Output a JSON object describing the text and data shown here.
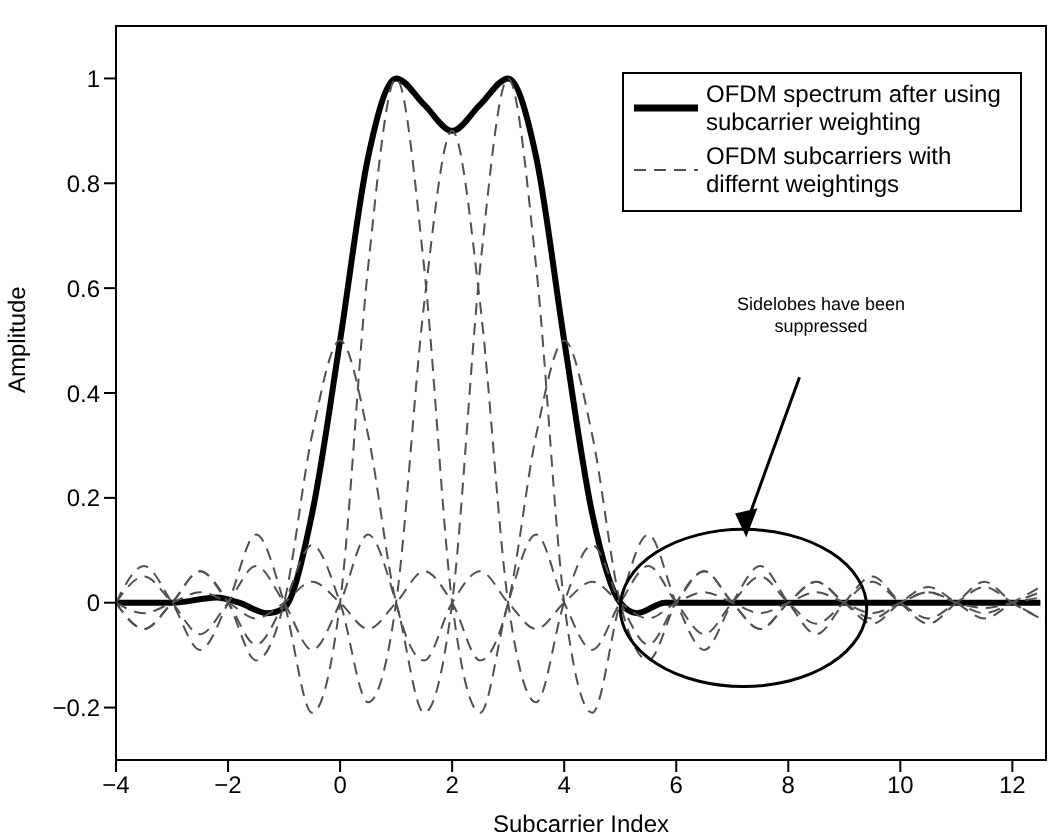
{
  "chart_data": {
    "type": "line",
    "xlabel": "Subcarrier Index",
    "ylabel": "Amplitude",
    "xlim": [
      -4,
      12.6
    ],
    "xticks": [
      -4,
      -2,
      0,
      2,
      4,
      6,
      8,
      10,
      12
    ],
    "ylim": [
      -0.3,
      1.1
    ],
    "yticks": [
      -0.2,
      0,
      0.2,
      0.4,
      0.6,
      0.8,
      1
    ],
    "grid": false,
    "legend": "top right",
    "marker": "none",
    "annotations": [
      "Sidelobes have been suppressed"
    ],
    "series": [
      {
        "name": "OFDM spectrum after using subcarrier weighting",
        "color": "#000000",
        "line_style": "solid",
        "x": [
          -4,
          -3,
          -2.2,
          -1.8,
          -1.3,
          -1,
          -0.5,
          0,
          0.5,
          1,
          1.5,
          2,
          2.5,
          3,
          3.5,
          4,
          4.5,
          5,
          5.3,
          5.8,
          6.5,
          8,
          10,
          12.5
        ],
        "values": [
          0,
          0,
          0.01,
          0,
          -0.02,
          -0.01,
          0.17,
          0.5,
          0.85,
          1,
          0.95,
          0.9,
          0.95,
          1,
          0.85,
          0.5,
          0.17,
          0,
          -0.02,
          0,
          0,
          0,
          0,
          0
        ]
      },
      {
        "name": "OFDM subcarriers with differnt weightings",
        "color": "#505050",
        "line_style": "dashed",
        "x": [
          -4,
          -3.5,
          -3,
          -2.5,
          -2,
          -1.5,
          -1,
          -0.5,
          0,
          0.5,
          1,
          1.5,
          2,
          2.5,
          3,
          3.5,
          4,
          4.5,
          5,
          5.5,
          6,
          6.5,
          7,
          7.5,
          8,
          8.5,
          9,
          9.5,
          10,
          10.5,
          11,
          11.5,
          12,
          12.5
        ],
        "values": [
          0,
          -0.05,
          0,
          0.06,
          0,
          -0.11,
          0,
          0.32,
          0.5,
          0.32,
          0,
          -0.11,
          0,
          0.06,
          0,
          -0.05,
          0,
          0.04,
          0,
          -0.03,
          0,
          0.02,
          0,
          -0.02,
          0,
          0.02,
          0,
          -0.02,
          0,
          0.02,
          0,
          -0.01,
          0,
          0.01
        ]
      },
      {
        "color": "#505050",
        "line_style": "dashed",
        "x": [
          -4,
          -3.5,
          -3,
          -2.5,
          -2,
          -1.5,
          -1,
          -0.5,
          0,
          0.5,
          1,
          1.5,
          2,
          2.5,
          3,
          3.5,
          4,
          4.5,
          5,
          5.5,
          6,
          6.5,
          7,
          7.5,
          8,
          8.5,
          9,
          9.5,
          10,
          10.5,
          11,
          11.5,
          12,
          12.5
        ],
        "values": [
          0,
          0.07,
          0,
          -0.09,
          0,
          0.13,
          0,
          -0.21,
          0,
          0.64,
          1,
          0.64,
          0,
          -0.21,
          0,
          0.13,
          0,
          -0.09,
          0,
          0.07,
          0,
          -0.06,
          0,
          0.05,
          0,
          -0.04,
          0,
          0.04,
          0,
          -0.03,
          0,
          0.03,
          0,
          -0.03
        ]
      },
      {
        "color": "#505050",
        "line_style": "dashed",
        "x": [
          -4,
          -3.5,
          -3,
          -2.5,
          -2,
          -1.5,
          -1,
          -0.5,
          0,
          0.5,
          1,
          1.5,
          2,
          2.5,
          3,
          3.5,
          4,
          4.5,
          5,
          5.5,
          6,
          6.5,
          7,
          7.5,
          8,
          8.5,
          9,
          9.5,
          10,
          10.5,
          11,
          11.5,
          12,
          12.5
        ],
        "values": [
          0,
          -0.05,
          0,
          0.06,
          0,
          -0.08,
          0,
          0.11,
          0,
          -0.19,
          0,
          0.57,
          0.9,
          0.57,
          0,
          -0.19,
          0,
          0.11,
          0,
          -0.08,
          0,
          0.06,
          0,
          -0.05,
          0,
          0.04,
          0,
          -0.04,
          0,
          0.03,
          0,
          -0.03,
          0,
          0.03
        ]
      },
      {
        "color": "#505050",
        "line_style": "dashed",
        "x": [
          -4,
          -3.5,
          -3,
          -2.5,
          -2,
          -1.5,
          -1,
          -0.5,
          0,
          0.5,
          1,
          1.5,
          2,
          2.5,
          3,
          3.5,
          4,
          4.5,
          5,
          5.5,
          6,
          6.5,
          7,
          7.5,
          8,
          8.5,
          9,
          9.5,
          10,
          10.5,
          11,
          11.5,
          12,
          12.5
        ],
        "values": [
          0,
          0.05,
          0,
          -0.06,
          0,
          0.07,
          0,
          -0.09,
          0,
          0.13,
          0,
          -0.21,
          0,
          0.64,
          1,
          0.64,
          0,
          -0.21,
          0,
          0.13,
          0,
          -0.09,
          0,
          0.07,
          0,
          -0.06,
          0,
          0.05,
          0,
          -0.04,
          0,
          0.04,
          0,
          -0.03
        ]
      },
      {
        "color": "#505050",
        "line_style": "dashed",
        "x": [
          -4,
          -3.5,
          -3,
          -2.5,
          -2,
          -1.5,
          -1,
          -0.5,
          0,
          0.5,
          1,
          1.5,
          2,
          2.5,
          3,
          3.5,
          4,
          4.5,
          5,
          5.5,
          6,
          6.5,
          7,
          7.5,
          8,
          8.5,
          9,
          9.5,
          10,
          10.5,
          11,
          11.5,
          12,
          12.5
        ],
        "values": [
          0,
          -0.02,
          0,
          0.02,
          0,
          -0.03,
          0,
          0.04,
          0,
          -0.05,
          0,
          0.06,
          0,
          -0.11,
          0,
          0.32,
          0.5,
          0.32,
          0,
          -0.11,
          0,
          0.06,
          0,
          -0.05,
          0,
          0.04,
          0,
          -0.03,
          0,
          0.02,
          0,
          -0.02,
          0,
          0.02
        ]
      }
    ]
  }
}
